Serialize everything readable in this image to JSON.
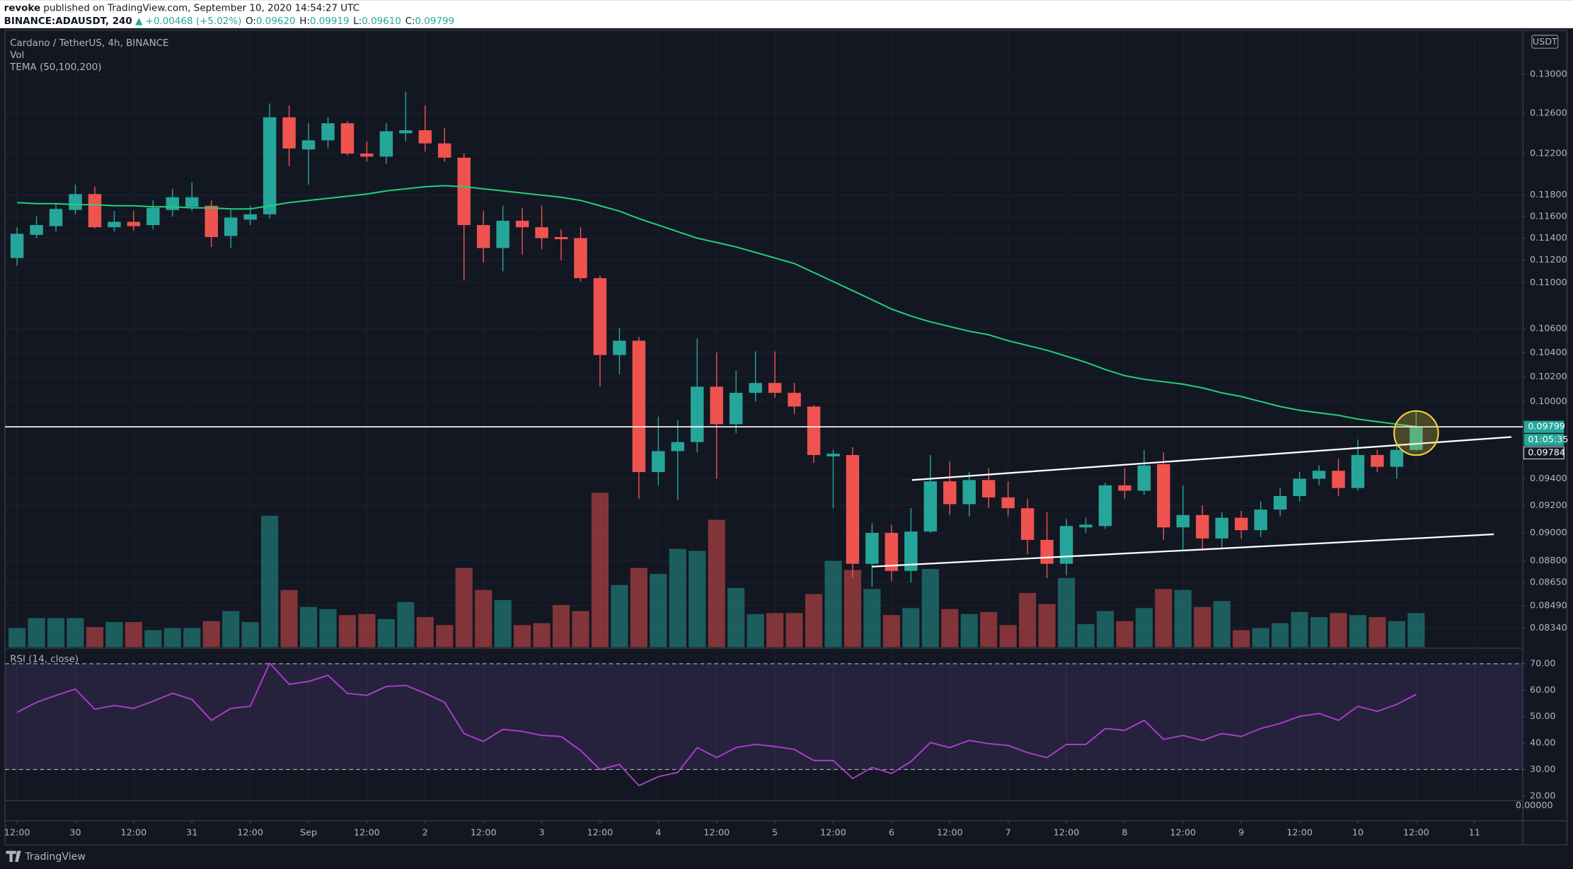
{
  "header": {
    "author": "revoke",
    "published": "published on TradingView.com, September 10, 2020 14:54:27 UTC",
    "symbol": "BINANCE:ADAUSDT, 240",
    "change": "▲ +0.00468 (+5.02%)",
    "ohlc": [
      {
        "label": "O:",
        "value": "0.09620"
      },
      {
        "label": "H:",
        "value": "0.09919"
      },
      {
        "label": "L:",
        "value": "0.09610"
      },
      {
        "label": "C:",
        "value": "0.09799"
      }
    ]
  },
  "chart_data": {
    "type": "candlestick",
    "title": "Cardano / TetherUS, 4h, BINANCE",
    "volume_label": "Vol",
    "indicator_label": "TEMA (50,100,200)",
    "currency": "USDT",
    "log_scale": true,
    "grid": true,
    "up_color": "#26a69a",
    "down_color": "#ef5350",
    "xlim": [
      -0.62,
      77.49
    ],
    "xticks": [
      {
        "value": 0,
        "label": "12:00"
      },
      {
        "value": 3,
        "label": "30"
      },
      {
        "value": 6,
        "label": "12:00"
      },
      {
        "value": 9,
        "label": "31"
      },
      {
        "value": 12,
        "label": "12:00"
      },
      {
        "value": 15,
        "label": "Sep"
      },
      {
        "value": 18,
        "label": "12:00"
      },
      {
        "value": 21,
        "label": "2"
      },
      {
        "value": 24,
        "label": "12:00"
      },
      {
        "value": 27,
        "label": "3"
      },
      {
        "value": 30,
        "label": "12:00"
      },
      {
        "value": 33,
        "label": "4"
      },
      {
        "value": 36,
        "label": "12:00"
      },
      {
        "value": 39,
        "label": "5"
      },
      {
        "value": 42,
        "label": "12:00"
      },
      {
        "value": 45,
        "label": "6"
      },
      {
        "value": 48,
        "label": "12:00"
      },
      {
        "value": 51,
        "label": "7"
      },
      {
        "value": 54,
        "label": "12:00"
      },
      {
        "value": 57,
        "label": "8"
      },
      {
        "value": 60,
        "label": "12:00"
      },
      {
        "value": 63,
        "label": "9"
      },
      {
        "value": 66,
        "label": "12:00"
      },
      {
        "value": 69,
        "label": "10"
      },
      {
        "value": 72,
        "label": "12:00"
      },
      {
        "value": 75,
        "label": "11"
      }
    ],
    "ylim": [
      0.08212,
      0.13447
    ],
    "yticks": [
      {
        "value": 0.13,
        "label": "0.13000"
      },
      {
        "value": 0.126,
        "label": "0.12600"
      },
      {
        "value": 0.122,
        "label": "0.12200"
      },
      {
        "value": 0.118,
        "label": "0.11800"
      },
      {
        "value": 0.116,
        "label": "0.11600"
      },
      {
        "value": 0.114,
        "label": "0.11400"
      },
      {
        "value": 0.112,
        "label": "0.11200"
      },
      {
        "value": 0.11,
        "label": "0.11000"
      },
      {
        "value": 0.106,
        "label": "0.10600"
      },
      {
        "value": 0.104,
        "label": "0.10400"
      },
      {
        "value": 0.102,
        "label": "0.10200"
      },
      {
        "value": 0.1,
        "label": "0.10000"
      },
      {
        "value": 0.094,
        "label": "0.09400"
      },
      {
        "value": 0.092,
        "label": "0.09200"
      },
      {
        "value": 0.09,
        "label": "0.09000"
      },
      {
        "value": 0.088,
        "label": "0.08800"
      },
      {
        "value": 0.0865,
        "label": "0.08650"
      },
      {
        "value": 0.0849,
        "label": "0.08490"
      },
      {
        "value": 0.0834,
        "label": "0.08340"
      }
    ],
    "open": [
      0.1122,
      0.1143,
      0.1151,
      0.1166,
      0.1181,
      0.115,
      0.1155,
      0.1152,
      0.1166,
      0.1169,
      0.117,
      0.1142,
      0.1157,
      0.1162,
      0.1256,
      0.1224,
      0.1233,
      0.125,
      0.122,
      0.1217,
      0.124,
      0.1243,
      0.123,
      0.1216,
      0.1152,
      0.1131,
      0.1156,
      0.115,
      0.1141,
      0.114,
      0.1104,
      0.1038,
      0.105,
      0.0945,
      0.0961,
      0.0968,
      0.1012,
      0.0982,
      0.1007,
      0.1015,
      0.1007,
      0.0996,
      0.0957,
      0.0958,
      0.0878,
      0.09,
      0.0873,
      0.0901,
      0.0938,
      0.0921,
      0.0939,
      0.0926,
      0.0918,
      0.0895,
      0.0878,
      0.0904,
      0.0905,
      0.0935,
      0.0931,
      0.0951,
      0.0904,
      0.0913,
      0.0896,
      0.0911,
      0.0902,
      0.0917,
      0.0927,
      0.094,
      0.0946,
      0.0933,
      0.0958,
      0.0949,
      0.0962
    ],
    "high": [
      0.115,
      0.116,
      0.1172,
      0.119,
      0.1188,
      0.1165,
      0.1165,
      0.1175,
      0.1186,
      0.1192,
      0.1175,
      0.1166,
      0.117,
      0.127,
      0.1268,
      0.125,
      0.1256,
      0.1252,
      0.1232,
      0.125,
      0.1282,
      0.1268,
      0.1245,
      0.122,
      0.1165,
      0.117,
      0.1168,
      0.117,
      0.1148,
      0.115,
      0.1106,
      0.1061,
      0.1053,
      0.0988,
      0.0985,
      0.1052,
      0.104,
      0.1025,
      0.1041,
      0.1041,
      0.1015,
      0.0997,
      0.0962,
      0.0964,
      0.0907,
      0.0906,
      0.0918,
      0.0958,
      0.0953,
      0.0945,
      0.0948,
      0.0938,
      0.0925,
      0.0915,
      0.091,
      0.0911,
      0.0937,
      0.0948,
      0.0962,
      0.096,
      0.0935,
      0.092,
      0.0915,
      0.0916,
      0.0923,
      0.0933,
      0.0945,
      0.095,
      0.0955,
      0.097,
      0.0962,
      0.0966,
      0.09919
    ],
    "low": [
      0.1115,
      0.114,
      0.1146,
      0.1162,
      0.1149,
      0.1146,
      0.1147,
      0.1148,
      0.116,
      0.1165,
      0.1132,
      0.1131,
      0.1152,
      0.1158,
      0.1208,
      0.119,
      0.1225,
      0.1218,
      0.1212,
      0.121,
      0.1232,
      0.1222,
      0.1212,
      0.1102,
      0.1118,
      0.111,
      0.1125,
      0.113,
      0.112,
      0.1101,
      0.1012,
      0.1022,
      0.0925,
      0.0935,
      0.0924,
      0.096,
      0.094,
      0.0975,
      0.1,
      0.1003,
      0.099,
      0.0952,
      0.0918,
      0.0868,
      0.0862,
      0.0866,
      0.0865,
      0.09,
      0.0913,
      0.0912,
      0.0918,
      0.0912,
      0.0885,
      0.0868,
      0.087,
      0.09,
      0.0903,
      0.0925,
      0.0928,
      0.0895,
      0.0888,
      0.0888,
      0.0888,
      0.0896,
      0.0897,
      0.0912,
      0.0923,
      0.0935,
      0.0927,
      0.0931,
      0.0945,
      0.094,
      0.0961
    ],
    "close": [
      0.1144,
      0.1152,
      0.1167,
      0.1181,
      0.115,
      0.1155,
      0.1151,
      0.1168,
      0.1178,
      0.1178,
      0.1141,
      0.1159,
      0.1162,
      0.1256,
      0.1225,
      0.1233,
      0.125,
      0.122,
      0.1217,
      0.1242,
      0.1243,
      0.123,
      0.1216,
      0.1152,
      0.1131,
      0.1156,
      0.115,
      0.114,
      0.1139,
      0.1104,
      0.1038,
      0.105,
      0.0945,
      0.0961,
      0.0968,
      0.1012,
      0.0982,
      0.1007,
      0.1015,
      0.1007,
      0.0996,
      0.0958,
      0.0959,
      0.0878,
      0.09,
      0.0873,
      0.0901,
      0.0938,
      0.0921,
      0.0939,
      0.0926,
      0.0918,
      0.0895,
      0.0878,
      0.0905,
      0.0906,
      0.0935,
      0.0931,
      0.095,
      0.0904,
      0.0913,
      0.0896,
      0.0911,
      0.0902,
      0.0917,
      0.0927,
      0.094,
      0.0946,
      0.0933,
      0.0958,
      0.0949,
      0.0962,
      0.09799
    ],
    "volume_ylim": [
      0,
      613
    ],
    "volume": [
      19,
      29,
      29,
      29,
      20,
      25,
      25,
      17,
      19,
      19,
      26,
      36,
      25,
      131,
      57,
      40,
      38,
      32,
      33,
      28,
      45,
      30,
      22,
      79,
      57,
      47,
      22,
      24,
      42,
      36,
      154,
      62,
      79,
      73,
      98,
      96,
      127,
      59,
      33,
      34,
      34,
      53,
      86,
      77,
      58,
      32,
      39,
      78,
      38,
      33,
      35,
      22,
      54,
      43,
      69,
      23,
      36,
      26,
      39,
      58,
      57,
      40,
      46,
      17,
      19,
      24,
      35,
      30,
      34,
      32,
      30,
      26,
      34
    ],
    "tema": {
      "color": "#22d17a",
      "values": [
        0.1173,
        0.1172,
        0.1172,
        0.1171,
        0.1171,
        0.117,
        0.117,
        0.1169,
        0.1169,
        0.1168,
        0.1168,
        0.1167,
        0.1167,
        0.117,
        0.1173,
        0.1175,
        0.1177,
        0.1179,
        0.1181,
        0.1184,
        0.1186,
        0.1188,
        0.1189,
        0.1188,
        0.1186,
        0.1184,
        0.1182,
        0.118,
        0.1178,
        0.1175,
        0.117,
        0.1165,
        0.1158,
        0.1152,
        0.1146,
        0.114,
        0.1136,
        0.1132,
        0.1127,
        0.1122,
        0.1117,
        0.1109,
        0.1101,
        0.1093,
        0.1085,
        0.1077,
        0.1071,
        0.1066,
        0.1062,
        0.1058,
        0.1055,
        0.105,
        0.1046,
        0.1042,
        0.1037,
        0.1032,
        0.1026,
        0.1021,
        0.1018,
        0.1016,
        0.1014,
        0.1011,
        0.1007,
        0.1004,
        0.1,
        0.0996,
        0.0993,
        0.0991,
        0.0989,
        0.0986,
        0.0984,
        0.0982,
        0.098
      ]
    },
    "price_line": {
      "value": 0.09799,
      "color": "#ffffff"
    },
    "countdown": "01:05:35",
    "tema_marker": 0.09784,
    "trendlines": [
      {
        "x": [
          46.05,
          76.9
        ],
        "y": [
          0.0939,
          0.0972
        ],
        "color": "#ffffff"
      },
      {
        "x": [
          44,
          76
        ],
        "y": [
          0.0876,
          0.0899
        ],
        "color": "#ffffff"
      }
    ],
    "highlight": {
      "x": 72,
      "y": 0.0975,
      "color": "#f2d33d"
    },
    "rsi": {
      "title": "RSI (14, close)",
      "color": "#b03ecf",
      "ylim": [
        18.6,
        75.1
      ],
      "bands": [
        30,
        70
      ],
      "bottom_label": "0.00000",
      "yticks": [
        {
          "value": 70,
          "label": "70.00"
        },
        {
          "value": 60,
          "label": "60.00"
        },
        {
          "value": 50,
          "label": "50.00"
        },
        {
          "value": 40,
          "label": "40.00"
        },
        {
          "value": 30,
          "label": "30.00"
        },
        {
          "value": 20,
          "label": "20.00"
        }
      ],
      "values": [
        51.6,
        55.4,
        58,
        60.4,
        52.8,
        54.2,
        53.1,
        55.8,
        58.8,
        56.5,
        48.6,
        53.1,
        53.9,
        70.2,
        62.2,
        63.3,
        65.6,
        58.8,
        58,
        61.4,
        61.8,
        58.8,
        55.4,
        43.6,
        40.6,
        45.2,
        44.4,
        42.9,
        42.5,
        37.2,
        30,
        31.9,
        23.9,
        27.3,
        28.9,
        38.3,
        34.5,
        38.3,
        39.5,
        38.7,
        37.6,
        33.4,
        33.4,
        26.6,
        30.8,
        28.5,
        33,
        40.2,
        38.3,
        41,
        39.8,
        39.1,
        36.4,
        34.5,
        39.5,
        39.5,
        45.5,
        44.8,
        48.6,
        41.4,
        42.9,
        41,
        43.6,
        42.5,
        45.5,
        47.4,
        50.1,
        51.2,
        48.6,
        53.9,
        52,
        54.6,
        58.4
      ]
    }
  },
  "footer": {
    "brand": "TradingView"
  }
}
